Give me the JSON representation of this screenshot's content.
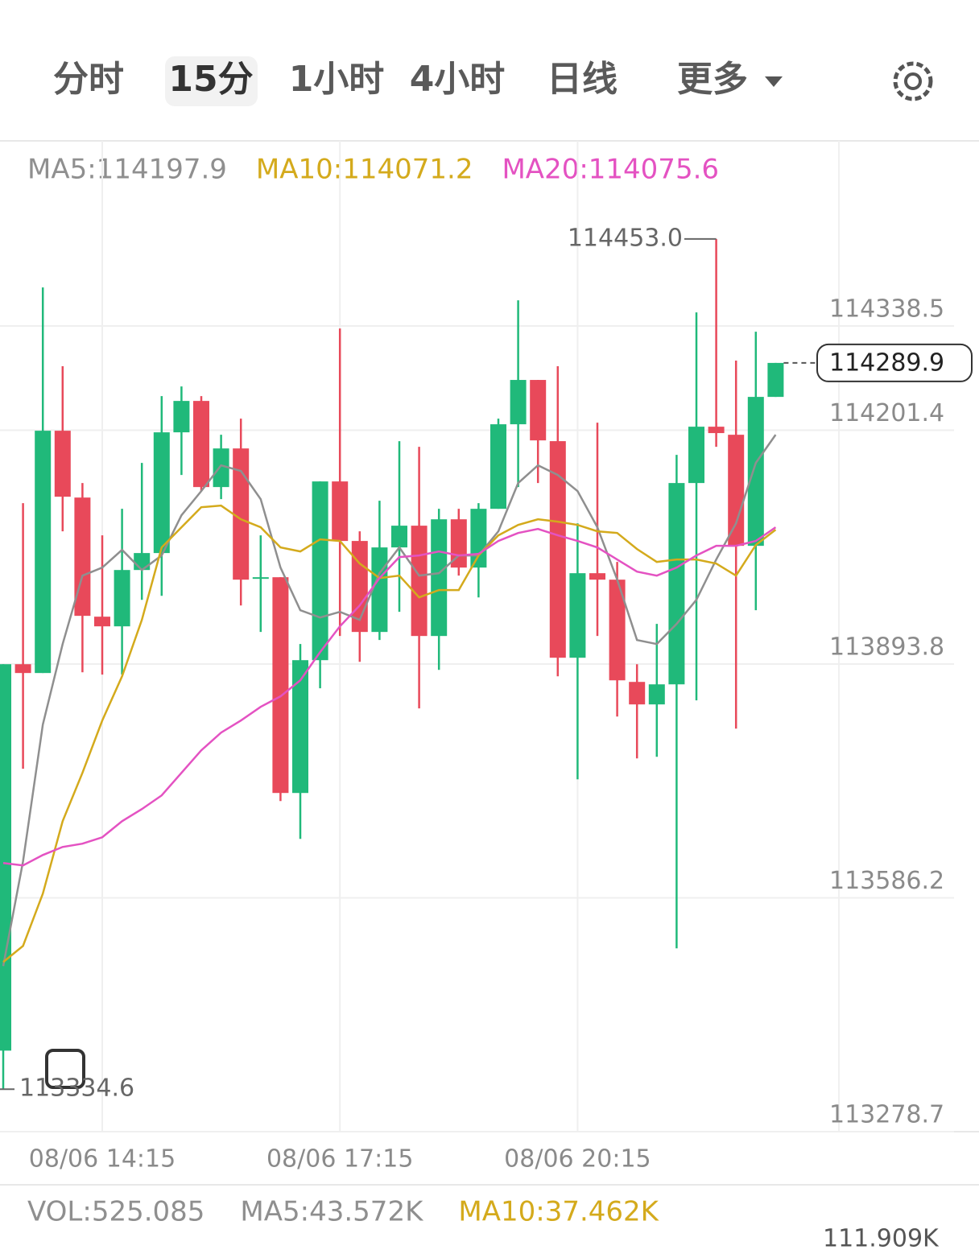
{
  "tabs": [
    "分时",
    "15分",
    "1小时",
    "4小时",
    "日线",
    "更多"
  ],
  "chart_data": {
    "type": "candlestick",
    "categories": [
      null,
      null,
      null,
      null,
      null,
      "08/06 14:15",
      null,
      null,
      null,
      null,
      null,
      null,
      null,
      null,
      null,
      null,
      null,
      "08/06 17:15",
      null,
      null,
      null,
      null,
      null,
      null,
      null,
      null,
      null,
      null,
      null,
      "08/06 20:15",
      null,
      null,
      null,
      null,
      null,
      null,
      null,
      null,
      null,
      null
    ],
    "open": [
      113385.3,
      113893.6,
      113882.0,
      114200.7,
      114112.8,
      113956.1,
      113943.4,
      114017.5,
      114039.8,
      114198.6,
      114239.9,
      114126.6,
      114177.4,
      114005.9,
      114008.0,
      113724.2,
      113898.9,
      114134.0,
      114055.7,
      113936.0,
      114047.2,
      114075.8,
      113930.7,
      114084.2,
      114020.7,
      114098.0,
      114209.2,
      114267.5,
      114187.0,
      113902.1,
      114013.3,
      114004.8,
      113870.3,
      113840.7,
      113867.1,
      114131.9,
      114206.0,
      114195.4,
      114049.3,
      114245.2
    ],
    "high": [
      113893.6,
      114105.4,
      114389.2,
      114285.5,
      114131.9,
      114063.1,
      114098.0,
      114158.4,
      114246.3,
      114259.0,
      114246.3,
      114195.4,
      114216.6,
      114063.1,
      114008.0,
      113920.1,
      114134.0,
      114335.2,
      114068.4,
      114108.6,
      114187.0,
      114179.6,
      114098.0,
      114098.0,
      114105.4,
      114216.6,
      114372.3,
      114267.5,
      114285.5,
      114078.9,
      114211.3,
      114028.1,
      113893.6,
      113946.6,
      114169.0,
      114356.4,
      114453.0,
      114292.9,
      114331.0,
      114289.9
    ],
    "low": [
      113334.6,
      113756.0,
      113882.0,
      114068.4,
      113883.0,
      113879.9,
      113879.9,
      113978.3,
      113983.6,
      114142.5,
      114121.3,
      114110.7,
      113970.9,
      113936.0,
      113713.6,
      113663.8,
      113861.9,
      113930.7,
      113896.8,
      113925.4,
      113962.5,
      113835.4,
      113886.2,
      114010.1,
      113981.5,
      114098.0,
      114126.6,
      114131.9,
      113877.7,
      113742.2,
      113930.7,
      113824.8,
      113769.7,
      113771.8,
      113519.8,
      113846.0,
      114179.6,
      113808.9,
      113964.6,
      114245.2
    ],
    "close": [
      113893.6,
      113882.0,
      114200.7,
      114113.9,
      113957.2,
      113943.4,
      114017.5,
      114039.8,
      114198.6,
      114239.9,
      114126.6,
      114177.4,
      114004.8,
      114008.0,
      113724.2,
      113898.9,
      114134.0,
      114055.7,
      113936.0,
      114047.2,
      114075.8,
      113930.7,
      114084.2,
      114020.7,
      114098.0,
      114209.2,
      114267.5,
      114188.0,
      113902.1,
      114013.3,
      114004.8,
      113872.4,
      113840.7,
      113867.1,
      114131.9,
      114206.0,
      114197.6,
      114049.3,
      114245.2,
      114289.9
    ],
    "up_color": "#20b97a",
    "down_color": "#e8495a",
    "ma_lines": [
      {
        "legend": "MA5:114197.9",
        "color": "#8f8f8f",
        "values": [
          113496.5,
          113634.2,
          113814.2,
          113920.1,
          114010.1,
          114020.7,
          114044.0,
          114017.5,
          114036.6,
          114089.5,
          114121.3,
          114155.2,
          114147.8,
          114110.7,
          114020.7,
          113964.6,
          113955.0,
          113962.5,
          113951.9,
          114013.3,
          114047.2,
          114010.1,
          114013.3,
          114036.6,
          114036.6,
          114068.4,
          114131.9,
          114155.2,
          114142.5,
          114121.3,
          114073.7,
          114004.8,
          113925.4,
          113920.1,
          113946.6,
          113978.3,
          114031.3,
          114078.9,
          114158.4,
          114195.4
        ]
      },
      {
        "legend": "MA10:114071.2",
        "color": "#d4aa1c",
        "values": [
          113501.8,
          113523.0,
          113591.8,
          113687.1,
          113750.7,
          113819.5,
          113877.7,
          113951.9,
          114047.2,
          114073.7,
          114100.1,
          114102.2,
          114084.2,
          114073.7,
          114047.2,
          114041.9,
          114057.8,
          114055.7,
          114026.0,
          114006.9,
          114010.1,
          113981.5,
          113991.1,
          113991.1,
          114036.6,
          114063.1,
          114076.8,
          114084.2,
          114081.1,
          114076.8,
          114068.4,
          114066.2,
          114045.1,
          114028.1,
          114031.3,
          114031.3,
          114026.0,
          114010.1,
          114050.4,
          114070.5
        ]
      },
      {
        "legend": "MA20:114075.6",
        "color": "#e452c2",
        "values": [
          113632.1,
          113628.9,
          113642.6,
          113653.2,
          113657.5,
          113665.9,
          113687.1,
          113703.0,
          113721.0,
          113750.7,
          113780.3,
          113803.6,
          113819.5,
          113837.5,
          113851.3,
          113872.4,
          113909.5,
          113943.4,
          113970.9,
          114006.9,
          114034.5,
          114036.6,
          114041.9,
          114036.6,
          114038.7,
          114055.7,
          114066.2,
          114071.5,
          114063.1,
          114055.7,
          114047.2,
          114031.3,
          114015.4,
          114010.1,
          114020.7,
          114036.6,
          114049.3,
          114049.3,
          114055.7,
          114073.7
        ]
      }
    ],
    "ylim": [
      113278.7,
      114582.0
    ],
    "yticks": [
      114338.5,
      114201.4,
      113893.8,
      113586.2,
      113278.7
    ],
    "grid": true,
    "high_marker": {
      "value": 114453.0,
      "label": "114453.0"
    },
    "low_marker": 113334.6,
    "last_price": 114289.9,
    "volume": {
      "legend": [
        {
          "text": "VOL:525.085",
          "color": "#8f8f8f"
        },
        {
          "text": "MA5:43.572K",
          "color": "#8f8f8f"
        },
        {
          "text": "MA10:37.462K",
          "color": "#d4aa1c"
        }
      ],
      "axis_label": "111.909K"
    }
  }
}
